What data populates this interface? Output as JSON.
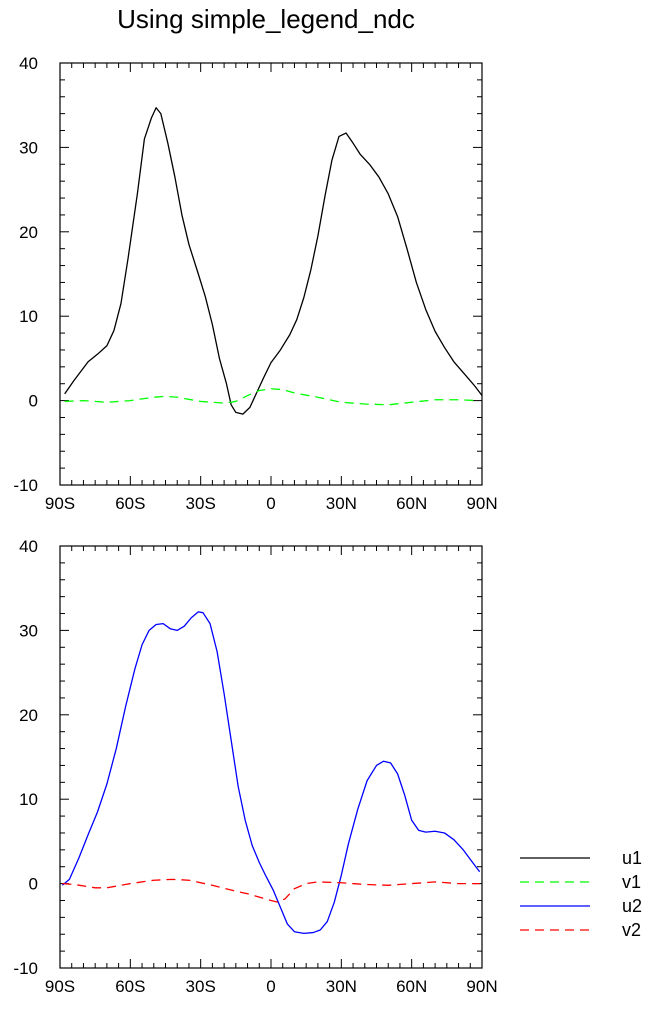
{
  "title": "Using simple_legend_ndc",
  "chart_data": [
    {
      "type": "line",
      "title": "",
      "xlabel": "",
      "ylabel": "",
      "xlim": [
        -90,
        90
      ],
      "ylim": [
        -10,
        40
      ],
      "x_ticks": [
        -90,
        -60,
        -30,
        0,
        30,
        60,
        90
      ],
      "x_tick_labels": [
        "90S",
        "60S",
        "30S",
        "0",
        "30N",
        "60N",
        "90N"
      ],
      "y_ticks": [
        -10,
        0,
        10,
        20,
        30,
        40
      ],
      "y_tick_labels": [
        "-10",
        "0",
        "10",
        "20",
        "30",
        "40"
      ],
      "series": [
        {
          "name": "u1",
          "color": "#000000",
          "dash": "solid",
          "points": [
            [
              -88,
              0.8
            ],
            [
              -84,
              2.4
            ],
            [
              -78,
              4.6
            ],
            [
              -74,
              5.5
            ],
            [
              -70,
              6.5
            ],
            [
              -67,
              8.3
            ],
            [
              -64,
              11.5
            ],
            [
              -61,
              16.8
            ],
            [
              -57,
              24.5
            ],
            [
              -54,
              31
            ],
            [
              -51,
              33.5
            ],
            [
              -49,
              34.7
            ],
            [
              -47,
              34
            ],
            [
              -44,
              30.5
            ],
            [
              -41,
              26.5
            ],
            [
              -38,
              22
            ],
            [
              -35,
              18.5
            ],
            [
              -31,
              15
            ],
            [
              -28,
              12.3
            ],
            [
              -25,
              9
            ],
            [
              -22,
              5
            ],
            [
              -19,
              2
            ],
            [
              -17,
              -0.5
            ],
            [
              -15,
              -1.4
            ],
            [
              -12,
              -1.6
            ],
            [
              -9,
              -0.8
            ],
            [
              -6,
              1
            ],
            [
              -3,
              2.8
            ],
            [
              0,
              4.5
            ],
            [
              4,
              6
            ],
            [
              8,
              7.8
            ],
            [
              11,
              9.6
            ],
            [
              14,
              12.2
            ],
            [
              17,
              15.5
            ],
            [
              20,
              19.5
            ],
            [
              23,
              24.2
            ],
            [
              26,
              28.5
            ],
            [
              29,
              31.3
            ],
            [
              32,
              31.7
            ],
            [
              35,
              30.5
            ],
            [
              38,
              29.2
            ],
            [
              42,
              28
            ],
            [
              46,
              26.5
            ],
            [
              50,
              24.5
            ],
            [
              54,
              21.8
            ],
            [
              58,
              18
            ],
            [
              62,
              14
            ],
            [
              66,
              10.8
            ],
            [
              70,
              8.2
            ],
            [
              74,
              6.3
            ],
            [
              78,
              4.6
            ],
            [
              83,
              3
            ],
            [
              87,
              1.7
            ],
            [
              90,
              0.6
            ]
          ]
        },
        {
          "name": "v1",
          "color": "#00ff00",
          "dash": "dashed",
          "points": [
            [
              -88,
              -0.1
            ],
            [
              -80,
              0
            ],
            [
              -70,
              -0.2
            ],
            [
              -60,
              0
            ],
            [
              -50,
              0.4
            ],
            [
              -45,
              0.5
            ],
            [
              -40,
              0.4
            ],
            [
              -30,
              -0.1
            ],
            [
              -20,
              -0.3
            ],
            [
              -15,
              -0.1
            ],
            [
              -10,
              0.6
            ],
            [
              -5,
              1.2
            ],
            [
              0,
              1.4
            ],
            [
              5,
              1.3
            ],
            [
              10,
              0.9
            ],
            [
              20,
              0.4
            ],
            [
              30,
              -0.2
            ],
            [
              40,
              -0.4
            ],
            [
              50,
              -0.5
            ],
            [
              60,
              -0.2
            ],
            [
              70,
              0.1
            ],
            [
              80,
              0.1
            ],
            [
              88,
              0
            ]
          ]
        }
      ]
    },
    {
      "type": "line",
      "title": "",
      "xlabel": "",
      "ylabel": "",
      "xlim": [
        -90,
        90
      ],
      "ylim": [
        -10,
        40
      ],
      "x_ticks": [
        -90,
        -60,
        -30,
        0,
        30,
        60,
        90
      ],
      "x_tick_labels": [
        "90S",
        "60S",
        "30S",
        "0",
        "30N",
        "60N",
        "90N"
      ],
      "y_ticks": [
        -10,
        0,
        10,
        20,
        30,
        40
      ],
      "y_tick_labels": [
        "-10",
        "0",
        "10",
        "20",
        "30",
        "40"
      ],
      "series": [
        {
          "name": "u2",
          "color": "#0000ff",
          "dash": "solid",
          "points": [
            [
              -89,
              -0.2
            ],
            [
              -86,
              0.5
            ],
            [
              -82,
              3
            ],
            [
              -78,
              5.8
            ],
            [
              -74,
              8.5
            ],
            [
              -70,
              11.8
            ],
            [
              -66,
              16
            ],
            [
              -62,
              21
            ],
            [
              -58,
              25.5
            ],
            [
              -55,
              28.3
            ],
            [
              -52,
              30
            ],
            [
              -49,
              30.7
            ],
            [
              -46,
              30.8
            ],
            [
              -43,
              30.2
            ],
            [
              -40,
              30
            ],
            [
              -37,
              30.5
            ],
            [
              -34,
              31.5
            ],
            [
              -31,
              32.2
            ],
            [
              -29,
              32.1
            ],
            [
              -26,
              30.8
            ],
            [
              -23,
              27.5
            ],
            [
              -20,
              22.5
            ],
            [
              -17,
              17
            ],
            [
              -14,
              11.5
            ],
            [
              -11,
              7.5
            ],
            [
              -8,
              4.5
            ],
            [
              -5,
              2.5
            ],
            [
              -2,
              0.8
            ],
            [
              1,
              -0.8
            ],
            [
              4,
              -2.8
            ],
            [
              7,
              -4.8
            ],
            [
              10,
              -5.7
            ],
            [
              14,
              -5.9
            ],
            [
              18,
              -5.8
            ],
            [
              21,
              -5.5
            ],
            [
              24,
              -4.5
            ],
            [
              27,
              -2.2
            ],
            [
              30,
              1
            ],
            [
              33,
              4.7
            ],
            [
              37,
              8.8
            ],
            [
              41,
              12.2
            ],
            [
              45,
              14
            ],
            [
              48,
              14.5
            ],
            [
              51,
              14.3
            ],
            [
              54,
              13
            ],
            [
              57,
              10.5
            ],
            [
              60,
              7.5
            ],
            [
              63,
              6.3
            ],
            [
              66,
              6.1
            ],
            [
              70,
              6.2
            ],
            [
              74,
              6
            ],
            [
              78,
              5.2
            ],
            [
              82,
              4
            ],
            [
              86,
              2.5
            ],
            [
              89,
              1.4
            ]
          ]
        },
        {
          "name": "v2",
          "color": "#ff0000",
          "dash": "dashed",
          "points": [
            [
              -89,
              0
            ],
            [
              -84,
              -0.1
            ],
            [
              -75,
              -0.5
            ],
            [
              -70,
              -0.5
            ],
            [
              -60,
              0
            ],
            [
              -50,
              0.4
            ],
            [
              -42,
              0.5
            ],
            [
              -35,
              0.4
            ],
            [
              -25,
              -0.2
            ],
            [
              -15,
              -0.9
            ],
            [
              -10,
              -1.2
            ],
            [
              -5,
              -1.6
            ],
            [
              0,
              -2
            ],
            [
              3,
              -2.2
            ],
            [
              6,
              -1.8
            ],
            [
              10,
              -0.6
            ],
            [
              15,
              0
            ],
            [
              20,
              0.2
            ],
            [
              30,
              0.1
            ],
            [
              40,
              -0.1
            ],
            [
              50,
              -0.2
            ],
            [
              60,
              0
            ],
            [
              70,
              0.2
            ],
            [
              80,
              0
            ],
            [
              89,
              0
            ]
          ]
        }
      ]
    }
  ]
}
